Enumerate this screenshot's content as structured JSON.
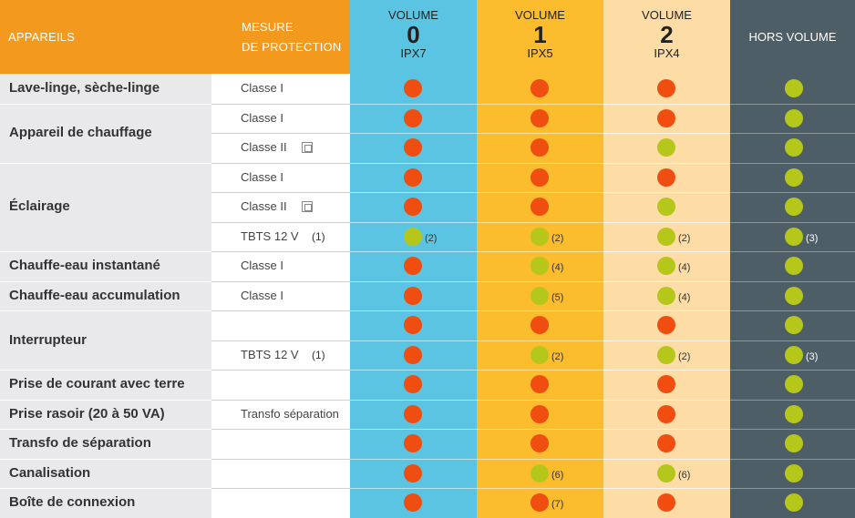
{
  "header": {
    "appareils": "APPAREILS",
    "mesure_line1": "MESURE",
    "mesure_line2": "DE PROTECTION",
    "volumes": [
      {
        "title": "VOLUME",
        "number": "0",
        "ip": "IPX7"
      },
      {
        "title": "VOLUME",
        "number": "1",
        "ip": "IPX5"
      },
      {
        "title": "VOLUME",
        "number": "2",
        "ip": "IPX4"
      }
    ],
    "hors_volume": "HORS VOLUME"
  },
  "colors": {
    "header_orange": "#f39a1e",
    "label_bg": "#e9e9eb",
    "volume0": "#5bc4e2",
    "volume1": "#fbbc2e",
    "volume2": "#fddca6",
    "hors_volume": "#4d5e66",
    "dot_red": "#f04e10",
    "dot_green": "#b5c71a"
  },
  "groups": [
    {
      "label": "Lave-linge, sèche-linge"
    },
    {
      "label": "Appareil de chauffage"
    },
    {
      "label": "Éclairage"
    },
    {
      "label": "Chauffe-eau instantané"
    },
    {
      "label": "Chauffe-eau accumulation"
    },
    {
      "label": "Interrupteur"
    },
    {
      "label": "Prise de courant avec terre"
    },
    {
      "label": "Prise rasoir (20 à 50 VA)"
    },
    {
      "label": "Transfo de séparation"
    },
    {
      "label": "Canalisation"
    },
    {
      "label": "Boîte de connexion"
    }
  ],
  "rows": [
    {
      "measure": "Classe I",
      "measure_note": "",
      "square": false,
      "cells": [
        {
          "dot": "red",
          "note": ""
        },
        {
          "dot": "red",
          "note": ""
        },
        {
          "dot": "red",
          "note": ""
        },
        {
          "dot": "green",
          "note": ""
        }
      ]
    },
    {
      "measure": "Classe I",
      "measure_note": "",
      "square": false,
      "cells": [
        {
          "dot": "red",
          "note": ""
        },
        {
          "dot": "red",
          "note": ""
        },
        {
          "dot": "red",
          "note": ""
        },
        {
          "dot": "green",
          "note": ""
        }
      ]
    },
    {
      "measure": "Classe II",
      "measure_note": "",
      "square": true,
      "cells": [
        {
          "dot": "red",
          "note": ""
        },
        {
          "dot": "red",
          "note": ""
        },
        {
          "dot": "green",
          "note": ""
        },
        {
          "dot": "green",
          "note": ""
        }
      ]
    },
    {
      "measure": "Classe I",
      "measure_note": "",
      "square": false,
      "cells": [
        {
          "dot": "red",
          "note": ""
        },
        {
          "dot": "red",
          "note": ""
        },
        {
          "dot": "red",
          "note": ""
        },
        {
          "dot": "green",
          "note": ""
        }
      ]
    },
    {
      "measure": "Classe II",
      "measure_note": "",
      "square": true,
      "cells": [
        {
          "dot": "red",
          "note": ""
        },
        {
          "dot": "red",
          "note": ""
        },
        {
          "dot": "green",
          "note": ""
        },
        {
          "dot": "green",
          "note": ""
        }
      ]
    },
    {
      "measure": "TBTS 12 V",
      "measure_note": "(1)",
      "square": false,
      "cells": [
        {
          "dot": "green",
          "note": "(2)"
        },
        {
          "dot": "green",
          "note": "(2)"
        },
        {
          "dot": "green",
          "note": "(2)"
        },
        {
          "dot": "green",
          "note": "(3)"
        }
      ]
    },
    {
      "measure": "Classe I",
      "measure_note": "",
      "square": false,
      "cells": [
        {
          "dot": "red",
          "note": ""
        },
        {
          "dot": "green",
          "note": "(4)"
        },
        {
          "dot": "green",
          "note": "(4)"
        },
        {
          "dot": "green",
          "note": ""
        }
      ]
    },
    {
      "measure": "Classe I",
      "measure_note": "",
      "square": false,
      "cells": [
        {
          "dot": "red",
          "note": ""
        },
        {
          "dot": "green",
          "note": "(5)"
        },
        {
          "dot": "green",
          "note": "(4)"
        },
        {
          "dot": "green",
          "note": ""
        }
      ]
    },
    {
      "measure": "",
      "measure_note": "",
      "square": false,
      "cells": [
        {
          "dot": "red",
          "note": ""
        },
        {
          "dot": "red",
          "note": ""
        },
        {
          "dot": "red",
          "note": ""
        },
        {
          "dot": "green",
          "note": ""
        }
      ]
    },
    {
      "measure": "TBTS 12 V",
      "measure_note": "(1)",
      "square": false,
      "cells": [
        {
          "dot": "red",
          "note": ""
        },
        {
          "dot": "green",
          "note": "(2)"
        },
        {
          "dot": "green",
          "note": "(2)"
        },
        {
          "dot": "green",
          "note": "(3)"
        }
      ]
    },
    {
      "measure": "",
      "measure_note": "",
      "square": false,
      "cells": [
        {
          "dot": "red",
          "note": ""
        },
        {
          "dot": "red",
          "note": ""
        },
        {
          "dot": "red",
          "note": ""
        },
        {
          "dot": "green",
          "note": ""
        }
      ]
    },
    {
      "measure": "Transfo séparation",
      "measure_note": "",
      "square": false,
      "cells": [
        {
          "dot": "red",
          "note": ""
        },
        {
          "dot": "red",
          "note": ""
        },
        {
          "dot": "red",
          "note": ""
        },
        {
          "dot": "green",
          "note": ""
        }
      ]
    },
    {
      "measure": "",
      "measure_note": "",
      "square": false,
      "cells": [
        {
          "dot": "red",
          "note": ""
        },
        {
          "dot": "red",
          "note": ""
        },
        {
          "dot": "red",
          "note": ""
        },
        {
          "dot": "green",
          "note": ""
        }
      ]
    },
    {
      "measure": "",
      "measure_note": "",
      "square": false,
      "cells": [
        {
          "dot": "red",
          "note": ""
        },
        {
          "dot": "green",
          "note": "(6)"
        },
        {
          "dot": "green",
          "note": "(6)"
        },
        {
          "dot": "green",
          "note": ""
        }
      ]
    },
    {
      "measure": "",
      "measure_note": "",
      "square": false,
      "cells": [
        {
          "dot": "red",
          "note": ""
        },
        {
          "dot": "red",
          "note": "(7)"
        },
        {
          "dot": "red",
          "note": ""
        },
        {
          "dot": "green",
          "note": ""
        }
      ]
    }
  ]
}
